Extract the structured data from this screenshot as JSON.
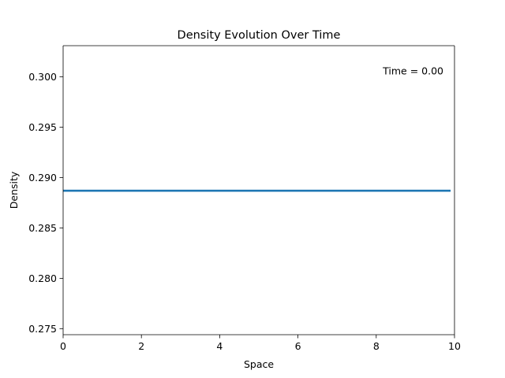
{
  "chart_data": {
    "type": "line",
    "title": "Density Evolution Over Time",
    "xlabel": "Space",
    "ylabel": "Density",
    "xlim": [
      0,
      10
    ],
    "ylim": [
      0.2744,
      0.3031
    ],
    "xticks": [
      0,
      2,
      4,
      6,
      8,
      10
    ],
    "xtick_labels": [
      "0",
      "2",
      "4",
      "6",
      "8",
      "10"
    ],
    "yticks": [
      0.275,
      0.28,
      0.285,
      0.29,
      0.295,
      0.3
    ],
    "ytick_labels": [
      "0.275",
      "0.280",
      "0.285",
      "0.290",
      "0.295",
      "0.300"
    ],
    "grid": false,
    "annotation": "Time = 0.00",
    "series": [
      {
        "color": "#1f77b4",
        "x": [
          0,
          9.9
        ],
        "y": [
          0.2887,
          0.2887
        ]
      }
    ]
  }
}
